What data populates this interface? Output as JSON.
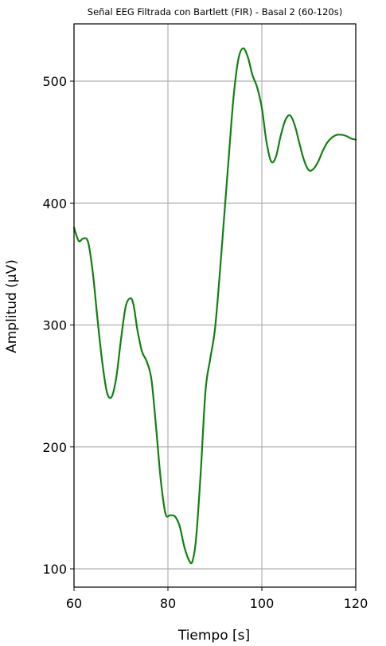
{
  "chart_data": {
    "type": "line",
    "title": "Señal EEG Filtrada con Bartlett (FIR) - Basal 2 (60-120s)",
    "xlabel": "Tiempo [s]",
    "ylabel": "Amplitud (µV)",
    "xlim": [
      60,
      120
    ],
    "ylim": [
      85,
      547
    ],
    "xticks": [
      60,
      80,
      100,
      120
    ],
    "yticks": [
      100,
      200,
      300,
      400,
      500
    ],
    "grid": true,
    "colors": {
      "series": "#118011",
      "grid": "#b0b0b0"
    },
    "series": [
      {
        "x": [
          60,
          61,
          62,
          63,
          64,
          65,
          66,
          67,
          68,
          69,
          70,
          71,
          72,
          72.7,
          73.5,
          74.5,
          75.5,
          76.5,
          77.5,
          78.5,
          79.5,
          80.5,
          81.5,
          82.5,
          83.5,
          84.5,
          85.2,
          86,
          87,
          88,
          89,
          90,
          91,
          92,
          93,
          94,
          95,
          96,
          97,
          98,
          99,
          100,
          101,
          102,
          103,
          104,
          105,
          106,
          107,
          108,
          109,
          110,
          111,
          112,
          113,
          114,
          115,
          116,
          117,
          118,
          119,
          120
        ],
        "y": [
          380,
          369,
          371,
          368,
          343,
          305,
          270,
          245,
          241,
          257,
          288,
          315,
          322,
          316,
          296,
          278,
          270,
          255,
          215,
          172,
          145,
          144,
          143,
          135,
          118,
          107,
          106,
          125,
          180,
          246,
          272,
          296,
          340,
          390,
          440,
          488,
          518,
          527,
          520,
          505,
          495,
          478,
          450,
          434,
          438,
          455,
          468,
          472,
          464,
          449,
          435,
          427,
          428,
          434,
          443,
          450,
          454,
          456,
          456,
          455,
          453,
          452
        ]
      }
    ]
  }
}
